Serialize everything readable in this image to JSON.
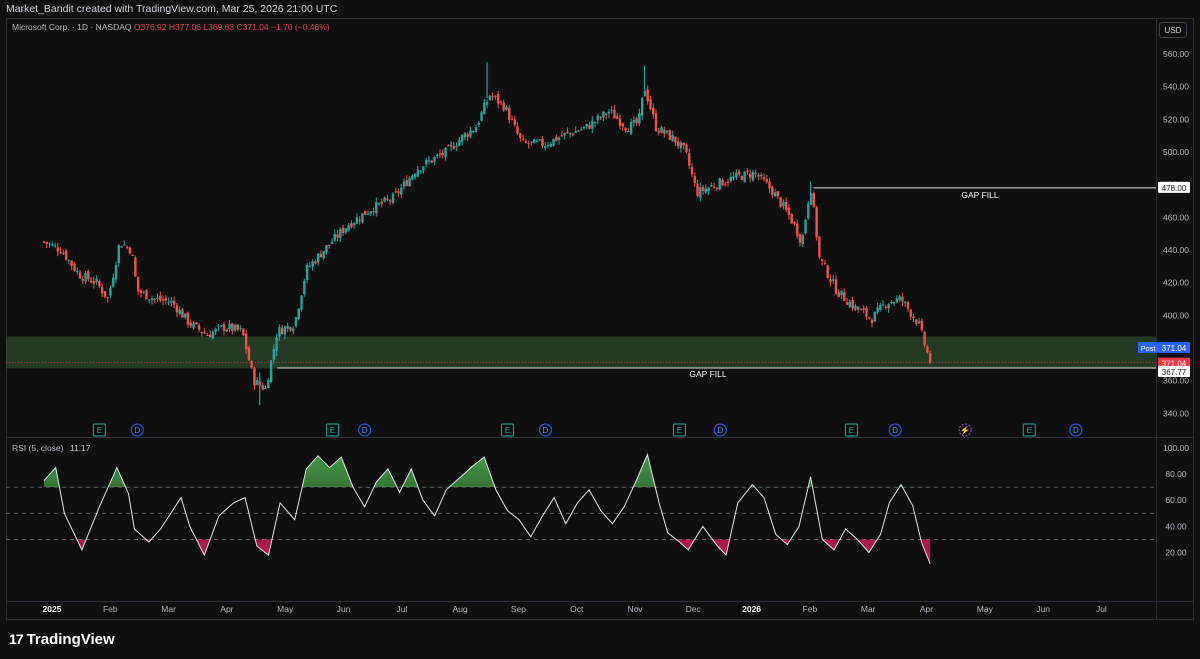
{
  "header": {
    "credit": "Market_Bandit created with TradingView.com, Mar 25, 2026 21:00 UTC"
  },
  "legend": {
    "symbol": "Microsoft Corp. · 1D · NASDAQ",
    "open": "O376.92",
    "high": "H377.06",
    "low": "L369.63",
    "close": "C371.04",
    "change": "−1.70 (−0.46%)"
  },
  "currency": "USD",
  "rsi_legend": {
    "label": "RSI (5, close)",
    "value": "11.17"
  },
  "brand": {
    "logo_text": "TradingView"
  },
  "colors": {
    "up": "#26a69a",
    "down": "#ef5350",
    "zone": "#2e4a2e",
    "gap_line": "#e0e0e0",
    "post_badge": "#2962ff",
    "price_badge": "#f23645",
    "rsi_line": "#e0e3eb",
    "rsi_over": "#4caf50",
    "rsi_under": "#e91e63"
  },
  "price_axis": {
    "ticks": [
      "560.00",
      "540.00",
      "520.00",
      "500.00",
      "480.00",
      "460.00",
      "440.00",
      "420.00",
      "400.00",
      "380.00",
      "360.00",
      "340.00"
    ]
  },
  "rsi_axis": {
    "ticks": [
      "100.00",
      "80.00",
      "60.00",
      "40.00",
      "20.00"
    ]
  },
  "time_axis": {
    "labels": [
      {
        "text": "2025",
        "bold": true
      },
      {
        "text": "Feb"
      },
      {
        "text": "Mar"
      },
      {
        "text": "Apr"
      },
      {
        "text": "May"
      },
      {
        "text": "Jun"
      },
      {
        "text": "Jul"
      },
      {
        "text": "Aug"
      },
      {
        "text": "Sep"
      },
      {
        "text": "Oct"
      },
      {
        "text": "Nov"
      },
      {
        "text": "Dec"
      },
      {
        "text": "2026",
        "bold": true
      },
      {
        "text": "Feb"
      },
      {
        "text": "Mar"
      },
      {
        "text": "Apr"
      },
      {
        "text": "May"
      },
      {
        "text": "Jun"
      },
      {
        "text": "Jul"
      }
    ]
  },
  "annotations": {
    "upper_gap_fill": {
      "label": "GAP FILL",
      "price": 478.0,
      "value_label": "478.00"
    },
    "lower_gap_fill": {
      "label": "GAP FILL",
      "price": 367.77,
      "value_label": "367.77"
    },
    "support_zone": {
      "from": 367.5,
      "to": 387.0
    },
    "post_label": "Post",
    "post_value": "371.04",
    "last_value": "371.04"
  },
  "events": [
    {
      "type": "E",
      "month": 0.95
    },
    {
      "type": "D",
      "month": 1.6
    },
    {
      "type": "E",
      "month": 4.95
    },
    {
      "type": "D",
      "month": 5.5
    },
    {
      "type": "E",
      "month": 7.95
    },
    {
      "type": "D",
      "month": 8.6
    },
    {
      "type": "E",
      "month": 10.9
    },
    {
      "type": "D",
      "month": 11.6
    },
    {
      "type": "E",
      "month": 13.85
    },
    {
      "type": "D",
      "month": 14.6
    },
    {
      "type": "S",
      "month": 15.8
    },
    {
      "type": "E",
      "month": 16.9
    },
    {
      "type": "D",
      "month": 17.7
    }
  ],
  "chart_data": [
    {
      "type": "candlestick",
      "title": "Microsoft Corp. · 1D · NASDAQ",
      "ylim": [
        330,
        570
      ],
      "x_unit": "months since Jan 1 2025 (approx., read off the time axis)",
      "key_points": [
        {
          "m": 0.0,
          "close": 445
        },
        {
          "m": 0.3,
          "close": 440
        },
        {
          "m": 0.6,
          "close": 425
        },
        {
          "m": 0.9,
          "close": 420
        },
        {
          "m": 1.1,
          "close": 410
        },
        {
          "m": 1.3,
          "close": 445
        },
        {
          "m": 1.5,
          "close": 440
        },
        {
          "m": 1.6,
          "close": 415
        },
        {
          "m": 1.9,
          "close": 410
        },
        {
          "m": 2.2,
          "close": 408
        },
        {
          "m": 2.5,
          "close": 395
        },
        {
          "m": 2.8,
          "close": 388
        },
        {
          "m": 3.1,
          "close": 393
        },
        {
          "m": 3.4,
          "close": 390
        },
        {
          "m": 3.6,
          "close": 360
        },
        {
          "m": 3.8,
          "close": 355
        },
        {
          "m": 4.0,
          "close": 390
        },
        {
          "m": 4.3,
          "close": 395
        },
        {
          "m": 4.5,
          "close": 428
        },
        {
          "m": 4.8,
          "close": 440
        },
        {
          "m": 5.2,
          "close": 455
        },
        {
          "m": 5.6,
          "close": 465
        },
        {
          "m": 6.0,
          "close": 472
        },
        {
          "m": 6.4,
          "close": 490
        },
        {
          "m": 6.9,
          "close": 500
        },
        {
          "m": 7.2,
          "close": 510
        },
        {
          "m": 7.4,
          "close": 515
        },
        {
          "m": 7.65,
          "close": 535
        },
        {
          "m": 7.9,
          "close": 528
        },
        {
          "m": 8.2,
          "close": 505
        },
        {
          "m": 8.6,
          "close": 505
        },
        {
          "m": 8.9,
          "close": 510
        },
        {
          "m": 9.3,
          "close": 515
        },
        {
          "m": 9.7,
          "close": 525
        },
        {
          "m": 10.0,
          "close": 515
        },
        {
          "m": 10.2,
          "close": 518
        },
        {
          "m": 10.3,
          "close": 540
        },
        {
          "m": 10.5,
          "close": 515
        },
        {
          "m": 10.8,
          "close": 508
        },
        {
          "m": 11.0,
          "close": 500
        },
        {
          "m": 11.2,
          "close": 475
        },
        {
          "m": 11.5,
          "close": 480
        },
        {
          "m": 11.9,
          "close": 485
        },
        {
          "m": 12.2,
          "close": 487
        },
        {
          "m": 12.5,
          "close": 476
        },
        {
          "m": 12.8,
          "close": 460
        },
        {
          "m": 13.0,
          "close": 445
        },
        {
          "m": 13.15,
          "close": 480
        },
        {
          "m": 13.3,
          "close": 435
        },
        {
          "m": 13.6,
          "close": 415
        },
        {
          "m": 13.9,
          "close": 405
        },
        {
          "m": 14.2,
          "close": 398
        },
        {
          "m": 14.45,
          "close": 408
        },
        {
          "m": 14.7,
          "close": 410
        },
        {
          "m": 15.0,
          "close": 395
        },
        {
          "m": 15.2,
          "close": 371.04
        }
      ],
      "annotations": [
        {
          "label": "GAP FILL",
          "price": 478.0
        },
        {
          "label": "GAP FILL",
          "price": 367.77
        }
      ]
    },
    {
      "type": "line",
      "title": "RSI (5, close)",
      "ylim": [
        0,
        100
      ],
      "hlines": [
        30,
        50,
        70
      ],
      "last_value": 11.17,
      "key_points": [
        {
          "m": 0.0,
          "rsi": 75
        },
        {
          "m": 0.2,
          "rsi": 85
        },
        {
          "m": 0.35,
          "rsi": 50
        },
        {
          "m": 0.65,
          "rsi": 22
        },
        {
          "m": 0.95,
          "rsi": 55
        },
        {
          "m": 1.25,
          "rsi": 85
        },
        {
          "m": 1.45,
          "rsi": 65
        },
        {
          "m": 1.55,
          "rsi": 38
        },
        {
          "m": 1.8,
          "rsi": 28
        },
        {
          "m": 2.0,
          "rsi": 38
        },
        {
          "m": 2.35,
          "rsi": 62
        },
        {
          "m": 2.5,
          "rsi": 40
        },
        {
          "m": 2.75,
          "rsi": 18
        },
        {
          "m": 3.0,
          "rsi": 48
        },
        {
          "m": 3.25,
          "rsi": 58
        },
        {
          "m": 3.45,
          "rsi": 62
        },
        {
          "m": 3.65,
          "rsi": 25
        },
        {
          "m": 3.85,
          "rsi": 18
        },
        {
          "m": 4.05,
          "rsi": 58
        },
        {
          "m": 4.3,
          "rsi": 45
        },
        {
          "m": 4.5,
          "rsi": 84
        },
        {
          "m": 4.7,
          "rsi": 94
        },
        {
          "m": 4.9,
          "rsi": 85
        },
        {
          "m": 5.1,
          "rsi": 93
        },
        {
          "m": 5.3,
          "rsi": 70
        },
        {
          "m": 5.5,
          "rsi": 55
        },
        {
          "m": 5.7,
          "rsi": 74
        },
        {
          "m": 5.9,
          "rsi": 84
        },
        {
          "m": 6.1,
          "rsi": 66
        },
        {
          "m": 6.3,
          "rsi": 84
        },
        {
          "m": 6.5,
          "rsi": 60
        },
        {
          "m": 6.7,
          "rsi": 48
        },
        {
          "m": 6.9,
          "rsi": 68
        },
        {
          "m": 7.15,
          "rsi": 78
        },
        {
          "m": 7.35,
          "rsi": 86
        },
        {
          "m": 7.55,
          "rsi": 93
        },
        {
          "m": 7.75,
          "rsi": 68
        },
        {
          "m": 7.95,
          "rsi": 52
        },
        {
          "m": 8.15,
          "rsi": 45
        },
        {
          "m": 8.35,
          "rsi": 32
        },
        {
          "m": 8.55,
          "rsi": 48
        },
        {
          "m": 8.75,
          "rsi": 62
        },
        {
          "m": 8.95,
          "rsi": 42
        },
        {
          "m": 9.15,
          "rsi": 58
        },
        {
          "m": 9.35,
          "rsi": 68
        },
        {
          "m": 9.55,
          "rsi": 52
        },
        {
          "m": 9.75,
          "rsi": 42
        },
        {
          "m": 9.95,
          "rsi": 55
        },
        {
          "m": 10.15,
          "rsi": 74
        },
        {
          "m": 10.35,
          "rsi": 95
        },
        {
          "m": 10.55,
          "rsi": 58
        },
        {
          "m": 10.7,
          "rsi": 35
        },
        {
          "m": 10.9,
          "rsi": 28
        },
        {
          "m": 11.05,
          "rsi": 22
        },
        {
          "m": 11.3,
          "rsi": 40
        },
        {
          "m": 11.55,
          "rsi": 25
        },
        {
          "m": 11.7,
          "rsi": 18
        },
        {
          "m": 11.9,
          "rsi": 58
        },
        {
          "m": 12.15,
          "rsi": 72
        },
        {
          "m": 12.35,
          "rsi": 62
        },
        {
          "m": 12.55,
          "rsi": 34
        },
        {
          "m": 12.75,
          "rsi": 26
        },
        {
          "m": 12.95,
          "rsi": 40
        },
        {
          "m": 13.15,
          "rsi": 78
        },
        {
          "m": 13.35,
          "rsi": 30
        },
        {
          "m": 13.55,
          "rsi": 22
        },
        {
          "m": 13.75,
          "rsi": 38
        },
        {
          "m": 13.95,
          "rsi": 30
        },
        {
          "m": 14.15,
          "rsi": 20
        },
        {
          "m": 14.35,
          "rsi": 34
        },
        {
          "m": 14.5,
          "rsi": 58
        },
        {
          "m": 14.7,
          "rsi": 72
        },
        {
          "m": 14.9,
          "rsi": 56
        },
        {
          "m": 15.05,
          "rsi": 28
        },
        {
          "m": 15.2,
          "rsi": 11.17
        }
      ]
    }
  ]
}
